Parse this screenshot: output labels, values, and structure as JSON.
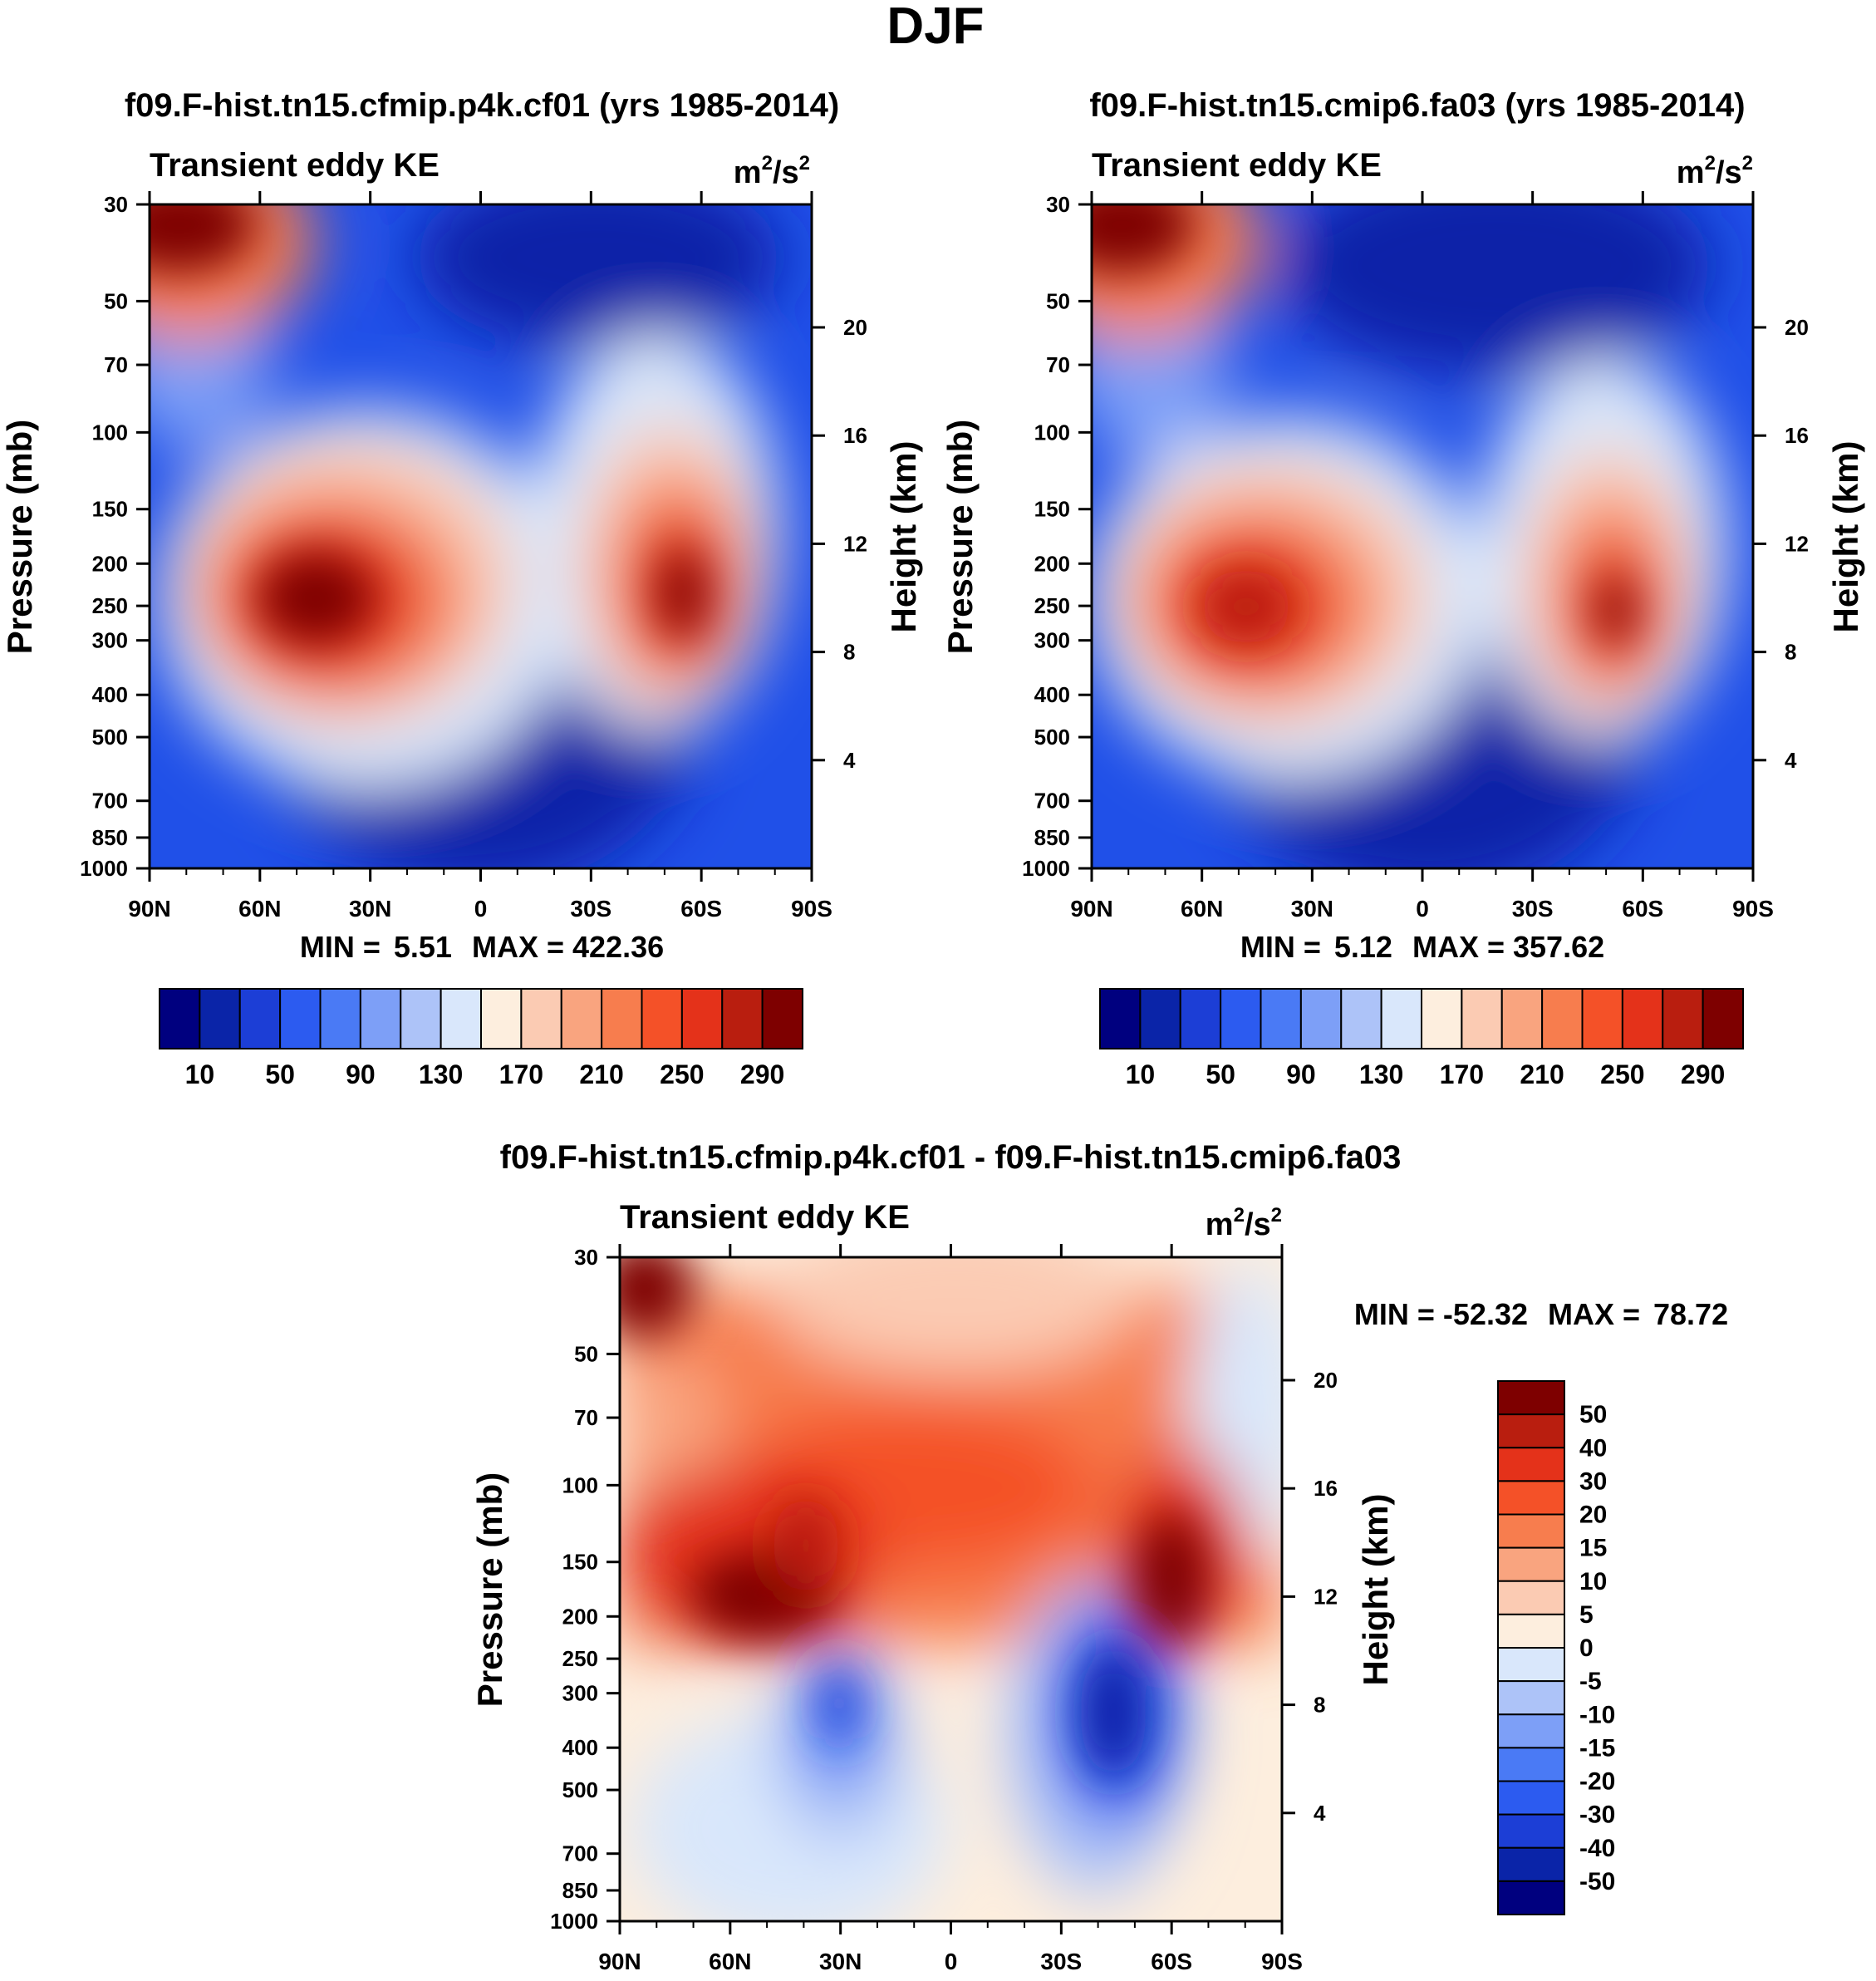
{
  "figure": {
    "season": "DJF",
    "colors": {
      "abs_scale": [
        "#00007f",
        "#0a24a8",
        "#1c3ed6",
        "#2c5bf0",
        "#4a7af5",
        "#7d9ff7",
        "#adc3f8",
        "#d9e7fb",
        "#fdeede",
        "#fbcbb3",
        "#f9a47f",
        "#f77d4e",
        "#f45128",
        "#e4321a",
        "#b91e0f",
        "#7e0000"
      ],
      "diff_scale": [
        "#00007f",
        "#0a24a8",
        "#1c3ed6",
        "#2c5bf0",
        "#4a7af5",
        "#7d9ff7",
        "#adc3f8",
        "#d9e7fb",
        "#fdeede",
        "#fbcbb3",
        "#f9a47f",
        "#f77d4e",
        "#f45128",
        "#e4321a",
        "#b91e0f",
        "#7e0000"
      ]
    }
  },
  "chart_data": [
    {
      "type": "heatmap",
      "id": "case",
      "title": "f09.F-hist.tn15.cfmip.p4k.cf01 (yrs 1985-2014)",
      "left_label": "Transient eddy KE",
      "units_base": "m",
      "units_exp1": "2",
      "units_mid": "/s",
      "units_exp2": "2",
      "ylabel": "Pressure (mb)",
      "ylabel_right": "Height (km)",
      "x_tick_labels": [
        "90N",
        "60N",
        "30N",
        "0",
        "30S",
        "60S",
        "90S"
      ],
      "x_lat_range": [
        90,
        -90
      ],
      "pressure_ticks": [
        "30",
        "50",
        "70",
        "100",
        "150",
        "200",
        "250",
        "300",
        "400",
        "500",
        "700",
        "850",
        "1000"
      ],
      "pressure_values": [
        30,
        50,
        70,
        100,
        150,
        200,
        250,
        300,
        400,
        500,
        700,
        850,
        1000
      ],
      "height_ticks": [
        "20",
        "16",
        "12",
        "8",
        "4"
      ],
      "height_values": [
        20,
        16,
        12,
        8,
        4
      ],
      "stats": {
        "min_label": "MIN =",
        "min": "5.51",
        "max_label": "MAX =",
        "max": "422.36"
      },
      "colorbar_labels": [
        "10",
        "50",
        "90",
        "130",
        "170",
        "210",
        "250",
        "290"
      ],
      "colorbar_levels": [
        10,
        30,
        50,
        70,
        90,
        110,
        130,
        150,
        170,
        190,
        210,
        230,
        250,
        270,
        290
      ],
      "features": [
        {
          "lat": 42,
          "p": 260,
          "value": 422
        },
        {
          "lat": -53,
          "p": 250,
          "value": 300
        },
        {
          "lat": 80,
          "p": 30,
          "value": 320
        }
      ]
    },
    {
      "type": "heatmap",
      "id": "control",
      "title": "f09.F-hist.tn15.cmip6.fa03 (yrs 1985-2014)",
      "left_label": "Transient eddy KE",
      "units_base": "m",
      "units_exp1": "2",
      "units_mid": "/s",
      "units_exp2": "2",
      "ylabel": "Pressure (mb)",
      "ylabel_right": "Height (km)",
      "x_tick_labels": [
        "90N",
        "60N",
        "30N",
        "0",
        "30S",
        "60S",
        "90S"
      ],
      "x_lat_range": [
        90,
        -90
      ],
      "pressure_ticks": [
        "30",
        "50",
        "70",
        "100",
        "150",
        "200",
        "250",
        "300",
        "400",
        "500",
        "700",
        "850",
        "1000"
      ],
      "pressure_values": [
        30,
        50,
        70,
        100,
        150,
        200,
        250,
        300,
        400,
        500,
        700,
        850,
        1000
      ],
      "height_ticks": [
        "20",
        "16",
        "12",
        "8",
        "4"
      ],
      "height_values": [
        20,
        16,
        12,
        8,
        4
      ],
      "stats": {
        "min_label": "MIN =",
        "min": "5.12",
        "max_label": "MAX =",
        "max": "357.62"
      },
      "colorbar_labels": [
        "10",
        "50",
        "90",
        "130",
        "170",
        "210",
        "250",
        "290"
      ],
      "colorbar_levels": [
        10,
        30,
        50,
        70,
        90,
        110,
        130,
        150,
        170,
        190,
        210,
        230,
        250,
        270,
        290
      ],
      "features": [
        {
          "lat": 42,
          "p": 260,
          "value": 357
        },
        {
          "lat": -50,
          "p": 250,
          "value": 300
        },
        {
          "lat": 80,
          "p": 30,
          "value": 300
        }
      ]
    },
    {
      "type": "heatmap",
      "id": "difference",
      "title": "f09.F-hist.tn15.cfmip.p4k.cf01 - f09.F-hist.tn15.cmip6.fa03",
      "left_label": "Transient eddy KE",
      "units_base": "m",
      "units_exp1": "2",
      "units_mid": "/s",
      "units_exp2": "2",
      "ylabel": "Pressure (mb)",
      "ylabel_right": "Height (km)",
      "x_tick_labels": [
        "90N",
        "60N",
        "30N",
        "0",
        "30S",
        "60S",
        "90S"
      ],
      "x_lat_range": [
        90,
        -90
      ],
      "pressure_ticks": [
        "30",
        "50",
        "70",
        "100",
        "150",
        "200",
        "250",
        "300",
        "400",
        "500",
        "700",
        "850",
        "1000"
      ],
      "pressure_values": [
        30,
        50,
        70,
        100,
        150,
        200,
        250,
        300,
        400,
        500,
        700,
        850,
        1000
      ],
      "height_ticks": [
        "20",
        "16",
        "12",
        "8",
        "4"
      ],
      "height_values": [
        20,
        16,
        12,
        8,
        4
      ],
      "stats": {
        "min_label": "MIN =",
        "min": "-52.32",
        "max_label": "MAX =",
        "max": "78.72"
      },
      "colorbar_labels": [
        "50",
        "40",
        "30",
        "20",
        "15",
        "10",
        "5",
        "0",
        "-5",
        "-10",
        "-15",
        "-20",
        "-30",
        "-40",
        "-50"
      ],
      "colorbar_levels": [
        -50,
        -40,
        -30,
        -20,
        -15,
        -10,
        -5,
        0,
        5,
        10,
        15,
        20,
        30,
        40,
        50
      ],
      "features": [
        {
          "lat": 45,
          "p": 190,
          "value": 78
        },
        {
          "lat": -57,
          "p": 190,
          "value": 60
        },
        {
          "lat": -43,
          "p": 300,
          "value": -52
        },
        {
          "lat": 30,
          "p": 330,
          "value": -30
        }
      ]
    }
  ]
}
